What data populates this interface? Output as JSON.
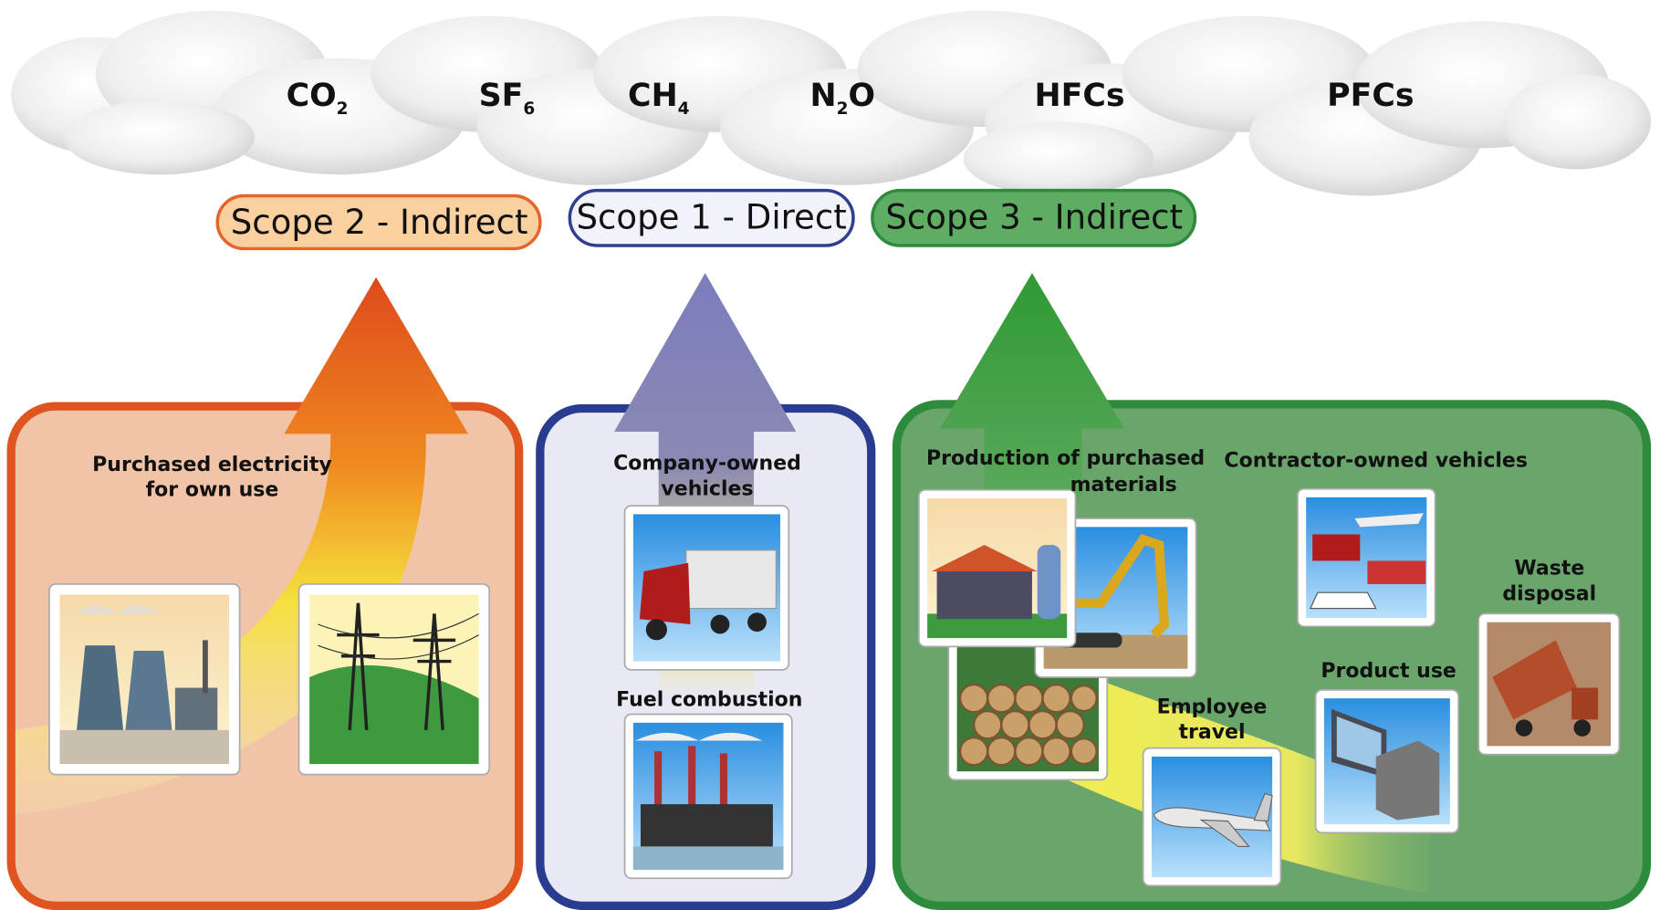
{
  "gases": [
    {
      "formula": "CO",
      "subscript": "2"
    },
    {
      "formula": "SF",
      "subscript": "6"
    },
    {
      "formula": "CH",
      "subscript": "4"
    },
    {
      "formula": "N",
      "subscript": "2",
      "suffix": "O"
    },
    {
      "formula": "HFCs"
    },
    {
      "formula": "PFCs"
    }
  ],
  "scopes": [
    {
      "label": "Scope 2 - Indirect",
      "sources": [
        [
          "Purchased electricity",
          "for own use"
        ]
      ]
    },
    {
      "label": "Scope 1 - Direct",
      "sources": [
        [
          "Company-owned",
          "vehicles"
        ],
        [
          "Fuel combustion"
        ]
      ]
    },
    {
      "label": "Scope 3 - Indirect",
      "sources": [
        [
          "Production of purchased",
          "materials"
        ],
        [
          "Contractor-owned vehicles"
        ],
        [
          "Waste",
          "disposal"
        ],
        [
          "Product use"
        ],
        [
          "Employee",
          "travel"
        ]
      ]
    }
  ]
}
